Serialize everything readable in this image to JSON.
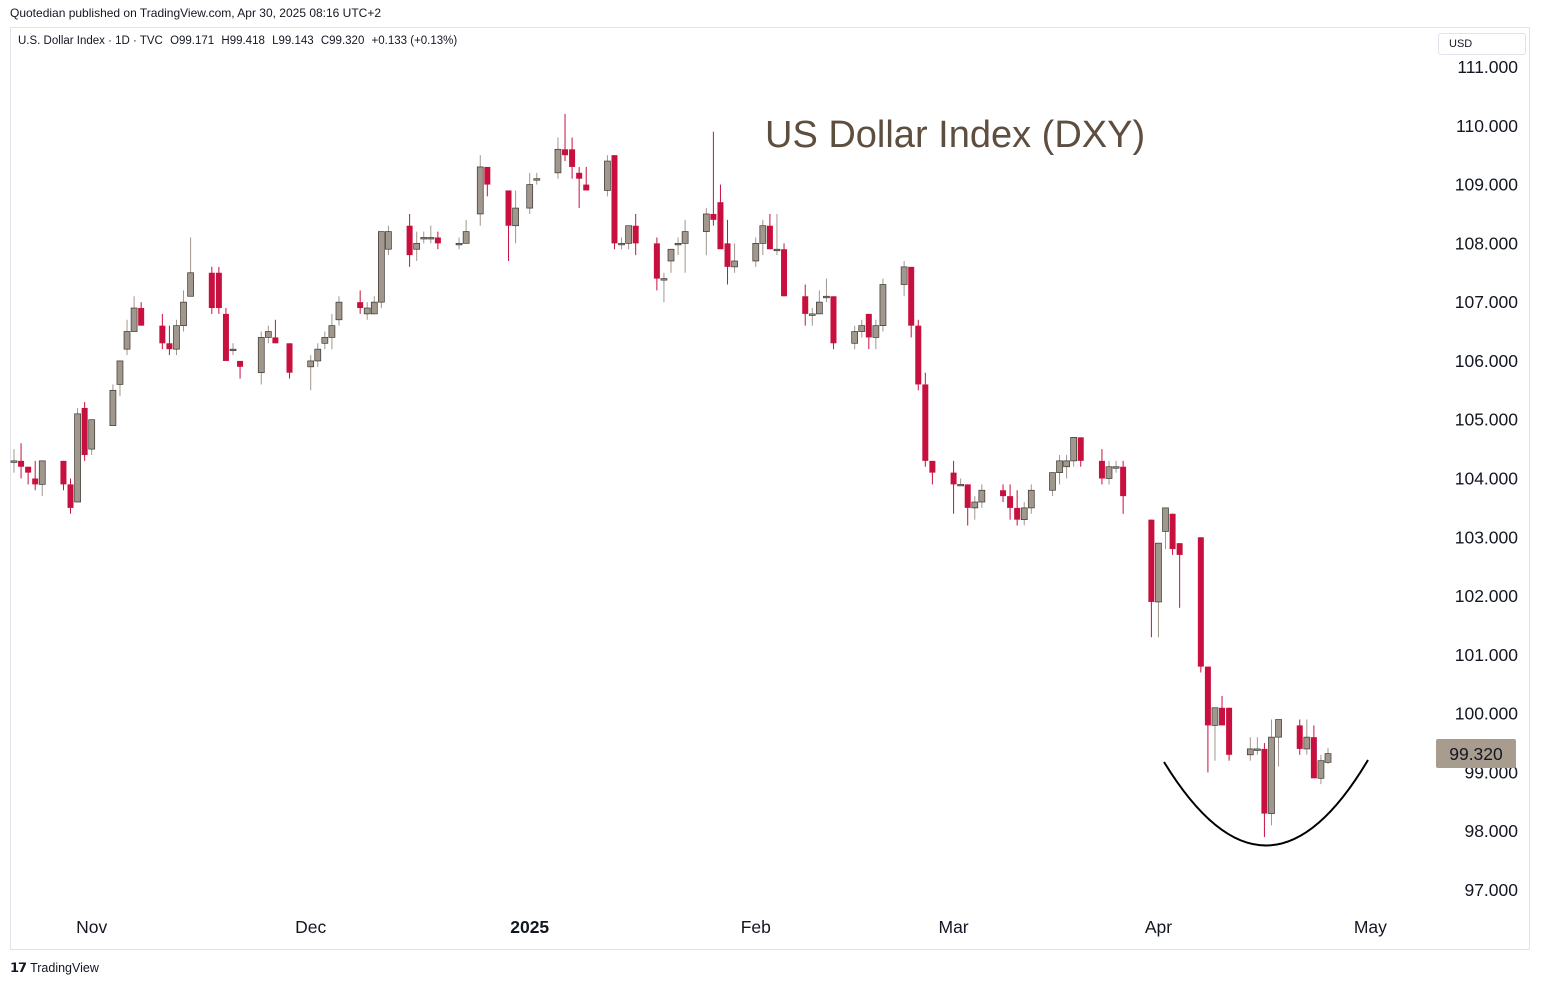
{
  "header": {
    "published": "Quotedian published on TradingView.com, Apr 30, 2025 08:16 UTC+2",
    "symbol": "U.S. Dollar Index · 1D · TVC",
    "open": "O99.171",
    "high": "H99.418",
    "low": "L99.143",
    "close": "C99.320",
    "change": "+0.133 (+0.13%)",
    "currency": "USD"
  },
  "footer": {
    "logo": "𝟭𝟳",
    "brand": "TradingView"
  },
  "colors": {
    "up": "#a0978d",
    "down": "#c8103f",
    "last_price_tag": "#a89c8f",
    "title": "#5d4e40"
  },
  "chart_data": {
    "type": "candlestick",
    "title": "US Dollar Index (DXY)",
    "last_price": "99.320",
    "y_ticks": [
      "111.000",
      "110.000",
      "109.000",
      "108.000",
      "107.000",
      "106.000",
      "105.000",
      "104.000",
      "103.000",
      "102.000",
      "101.000",
      "100.000",
      "99.000",
      "98.000",
      "97.000"
    ],
    "ylim": [
      96.9,
      111.4
    ],
    "x_ticks": [
      {
        "label": "Nov",
        "date": "2024-11-01"
      },
      {
        "label": "Dec",
        "date": "2024-12-02"
      },
      {
        "label": "2025",
        "date": "2025-01-02"
      },
      {
        "label": "Feb",
        "date": "2025-02-03"
      },
      {
        "label": "Mar",
        "date": "2025-03-03"
      },
      {
        "label": "Apr",
        "date": "2025-04-01"
      },
      {
        "label": "May",
        "date": "2025-05-01"
      }
    ],
    "annotation": "rounded-bottom arc under April lows",
    "ohlc": [
      [
        "2024-10-21",
        104.3,
        104.5,
        104.1,
        104.3
      ],
      [
        "2024-10-22",
        104.3,
        104.6,
        104.0,
        104.2
      ],
      [
        "2024-10-23",
        104.2,
        104.2,
        103.9,
        104.1
      ],
      [
        "2024-10-24",
        104.0,
        104.3,
        103.8,
        103.9
      ],
      [
        "2024-10-25",
        103.9,
        104.3,
        103.7,
        104.3
      ],
      [
        "2024-10-28",
        104.3,
        104.3,
        103.8,
        103.9
      ],
      [
        "2024-10-29",
        103.9,
        104.0,
        103.4,
        103.5
      ],
      [
        "2024-10-30",
        103.6,
        105.2,
        103.6,
        105.1
      ],
      [
        "2024-10-31",
        105.2,
        105.3,
        104.3,
        104.4
      ],
      [
        "2024-11-01",
        104.5,
        105.0,
        104.4,
        105.0
      ],
      [
        "2024-11-04",
        104.9,
        105.6,
        104.9,
        105.5
      ],
      [
        "2024-11-05",
        105.6,
        106.0,
        105.4,
        106.0
      ],
      [
        "2024-11-06",
        106.2,
        106.7,
        106.1,
        106.5
      ],
      [
        "2024-11-07",
        106.5,
        107.1,
        106.5,
        106.9
      ],
      [
        "2024-11-08",
        106.9,
        107.0,
        106.6,
        106.6
      ],
      [
        "2024-11-11",
        106.6,
        106.8,
        106.2,
        106.3
      ],
      [
        "2024-11-12",
        106.3,
        106.6,
        106.1,
        106.2
      ],
      [
        "2024-11-13",
        106.2,
        106.7,
        106.1,
        106.6
      ],
      [
        "2024-11-14",
        106.6,
        107.2,
        106.5,
        107.0
      ],
      [
        "2024-11-15",
        107.1,
        108.1,
        107.1,
        107.5
      ],
      [
        "2024-11-18",
        107.5,
        107.6,
        106.8,
        106.9
      ],
      [
        "2024-11-19",
        107.5,
        107.6,
        106.8,
        106.9
      ],
      [
        "2024-11-20",
        106.8,
        106.9,
        106.0,
        106.0
      ],
      [
        "2024-11-21",
        106.2,
        106.3,
        106.1,
        106.2
      ],
      [
        "2024-11-22",
        106.0,
        106.0,
        105.7,
        105.9
      ],
      [
        "2024-11-25",
        105.8,
        106.5,
        105.6,
        106.4
      ],
      [
        "2024-11-26",
        106.4,
        106.6,
        106.3,
        106.5
      ],
      [
        "2024-11-27",
        106.4,
        106.7,
        106.3,
        106.3
      ],
      [
        "2024-11-29",
        106.3,
        106.3,
        105.7,
        105.8
      ],
      [
        "2024-12-02",
        105.9,
        106.1,
        105.5,
        106.0
      ],
      [
        "2024-12-03",
        106.0,
        106.3,
        105.9,
        106.2
      ],
      [
        "2024-12-04",
        106.3,
        106.5,
        106.2,
        106.4
      ],
      [
        "2024-12-05",
        106.4,
        106.8,
        106.2,
        106.6
      ],
      [
        "2024-12-06",
        106.7,
        107.1,
        106.6,
        107.0
      ],
      [
        "2024-12-09",
        107.0,
        107.2,
        106.8,
        106.9
      ],
      [
        "2024-12-10",
        106.8,
        107.0,
        106.7,
        106.9
      ],
      [
        "2024-12-11",
        106.8,
        107.1,
        106.8,
        107.0
      ],
      [
        "2024-12-12",
        107.0,
        108.2,
        106.9,
        108.2
      ],
      [
        "2024-12-13",
        107.9,
        108.3,
        107.8,
        108.2
      ],
      [
        "2024-12-16",
        108.3,
        108.5,
        107.6,
        107.8
      ],
      [
        "2024-12-17",
        107.9,
        108.2,
        107.7,
        108.0
      ],
      [
        "2024-12-18",
        108.1,
        108.2,
        108.0,
        108.1
      ],
      [
        "2024-12-19",
        108.1,
        108.3,
        108.0,
        108.1
      ],
      [
        "2024-12-20",
        108.1,
        108.2,
        107.9,
        108.0
      ],
      [
        "2024-12-23",
        108.0,
        108.1,
        107.9,
        108.0
      ],
      [
        "2024-12-24",
        108.0,
        108.4,
        108.0,
        108.2
      ],
      [
        "2024-12-26",
        108.5,
        109.5,
        108.3,
        109.3
      ],
      [
        "2024-12-27",
        109.3,
        109.3,
        108.8,
        109.0
      ],
      [
        "2024-12-30",
        108.9,
        108.9,
        107.7,
        108.3
      ],
      [
        "2024-12-31",
        108.3,
        108.9,
        108.0,
        108.6
      ],
      [
        "2025-01-02",
        108.6,
        109.2,
        108.5,
        109.0
      ],
      [
        "2025-01-03",
        109.1,
        109.2,
        109.0,
        109.1
      ],
      [
        "2025-01-06",
        109.2,
        109.8,
        109.1,
        109.6
      ],
      [
        "2025-01-07",
        109.6,
        110.2,
        109.4,
        109.5
      ],
      [
        "2025-01-08",
        109.6,
        109.8,
        109.1,
        109.3
      ],
      [
        "2025-01-09",
        109.2,
        109.3,
        108.6,
        109.1
      ],
      [
        "2025-01-10",
        109.0,
        109.3,
        108.9,
        108.9
      ],
      [
        "2025-01-13",
        108.9,
        109.5,
        108.8,
        109.4
      ],
      [
        "2025-01-14",
        109.5,
        109.5,
        107.9,
        108.0
      ],
      [
        "2025-01-15",
        108.0,
        108.1,
        107.9,
        108.0
      ],
      [
        "2025-01-16",
        108.0,
        108.3,
        107.9,
        108.3
      ],
      [
        "2025-01-17",
        108.3,
        108.5,
        107.8,
        108.0
      ],
      [
        "2025-01-20",
        108.0,
        108.1,
        107.2,
        107.4
      ],
      [
        "2025-01-21",
        107.4,
        107.5,
        107.0,
        107.4
      ],
      [
        "2025-01-22",
        107.7,
        107.9,
        107.5,
        107.9
      ],
      [
        "2025-01-23",
        108.0,
        108.1,
        107.8,
        108.0
      ],
      [
        "2025-01-24",
        108.0,
        108.4,
        107.5,
        108.2
      ],
      [
        "2025-01-27",
        108.2,
        108.6,
        107.8,
        108.5
      ],
      [
        "2025-01-28",
        108.5,
        109.9,
        108.3,
        108.4
      ],
      [
        "2025-01-29",
        108.7,
        109.0,
        107.9,
        107.9
      ],
      [
        "2025-01-30",
        108.0,
        108.4,
        107.3,
        107.6
      ],
      [
        "2025-01-31",
        107.6,
        108.0,
        107.5,
        107.7
      ],
      [
        "2025-02-03",
        107.7,
        108.1,
        107.6,
        108.0
      ],
      [
        "2025-02-04",
        108.0,
        108.4,
        107.8,
        108.3
      ],
      [
        "2025-02-05",
        108.3,
        108.5,
        107.9,
        107.9
      ],
      [
        "2025-02-06",
        107.9,
        108.5,
        107.8,
        107.9
      ],
      [
        "2025-02-07",
        107.9,
        108.0,
        107.1,
        107.1
      ],
      [
        "2025-02-10",
        107.1,
        107.3,
        106.6,
        106.8
      ],
      [
        "2025-02-11",
        106.8,
        106.9,
        106.6,
        106.8
      ],
      [
        "2025-02-12",
        106.8,
        107.2,
        106.8,
        107.0
      ],
      [
        "2025-02-13",
        107.1,
        107.4,
        107.0,
        107.1
      ],
      [
        "2025-02-14",
        107.1,
        107.1,
        106.2,
        106.3
      ],
      [
        "2025-02-17",
        106.3,
        106.6,
        106.2,
        106.5
      ],
      [
        "2025-02-18",
        106.5,
        106.7,
        106.4,
        106.6
      ],
      [
        "2025-02-19",
        106.8,
        106.8,
        106.2,
        106.4
      ],
      [
        "2025-02-20",
        106.4,
        106.7,
        106.2,
        106.6
      ],
      [
        "2025-02-21",
        106.6,
        107.4,
        106.5,
        107.3
      ],
      [
        "2025-02-24",
        107.3,
        107.7,
        107.1,
        107.6
      ],
      [
        "2025-02-25",
        107.6,
        107.6,
        106.4,
        106.6
      ],
      [
        "2025-02-26",
        106.6,
        106.7,
        105.5,
        105.6
      ],
      [
        "2025-02-27",
        105.6,
        105.8,
        104.2,
        104.3
      ],
      [
        "2025-02-28",
        104.3,
        104.3,
        103.9,
        104.1
      ],
      [
        "2025-03-03",
        104.1,
        104.3,
        103.4,
        103.9
      ],
      [
        "2025-03-04",
        103.9,
        104.0,
        103.9,
        103.9
      ],
      [
        "2025-03-05",
        103.9,
        103.9,
        103.2,
        103.5
      ],
      [
        "2025-03-06",
        103.5,
        103.7,
        103.3,
        103.6
      ],
      [
        "2025-03-07",
        103.6,
        103.9,
        103.5,
        103.8
      ],
      [
        "2025-03-10",
        103.8,
        103.9,
        103.6,
        103.7
      ],
      [
        "2025-03-11",
        103.7,
        103.9,
        103.3,
        103.5
      ],
      [
        "2025-03-12",
        103.5,
        103.8,
        103.2,
        103.3
      ],
      [
        "2025-03-13",
        103.3,
        103.6,
        103.2,
        103.5
      ],
      [
        "2025-03-14",
        103.5,
        103.9,
        103.4,
        103.8
      ],
      [
        "2025-03-17",
        103.8,
        104.1,
        103.7,
        104.1
      ],
      [
        "2025-03-18",
        104.1,
        104.4,
        103.9,
        104.3
      ],
      [
        "2025-03-19",
        104.2,
        104.4,
        104.0,
        104.3
      ],
      [
        "2025-03-20",
        104.3,
        104.7,
        104.2,
        104.7
      ],
      [
        "2025-03-21",
        104.7,
        104.7,
        104.2,
        104.3
      ],
      [
        "2025-03-24",
        104.3,
        104.5,
        103.9,
        104.0
      ],
      [
        "2025-03-25",
        104.0,
        104.3,
        103.9,
        104.2
      ],
      [
        "2025-03-26",
        104.2,
        104.3,
        104.1,
        104.2
      ],
      [
        "2025-03-27",
        104.2,
        104.3,
        103.4,
        103.7
      ],
      [
        "2025-03-31",
        103.3,
        103.3,
        101.3,
        101.9
      ],
      [
        "2025-04-01",
        101.9,
        102.9,
        101.3,
        102.9
      ],
      [
        "2025-04-02",
        103.1,
        103.5,
        102.8,
        103.5
      ],
      [
        "2025-04-03",
        103.4,
        103.4,
        102.7,
        102.8
      ],
      [
        "2025-04-04",
        102.9,
        102.9,
        101.8,
        102.7
      ],
      [
        "2025-04-07",
        103.0,
        103.0,
        100.7,
        100.8
      ],
      [
        "2025-04-08",
        100.8,
        100.8,
        99.0,
        99.8
      ],
      [
        "2025-04-09",
        99.8,
        100.1,
        99.2,
        100.1
      ],
      [
        "2025-04-10",
        100.1,
        100.3,
        99.8,
        99.8
      ],
      [
        "2025-04-11",
        100.1,
        100.1,
        99.2,
        99.3
      ],
      [
        "2025-04-14",
        99.3,
        99.6,
        99.2,
        99.4
      ],
      [
        "2025-04-15",
        99.4,
        99.6,
        99.3,
        99.4
      ],
      [
        "2025-04-16",
        99.4,
        99.5,
        97.9,
        98.3
      ],
      [
        "2025-04-17",
        98.3,
        99.9,
        98.1,
        99.6
      ],
      [
        "2025-04-18",
        99.6,
        99.8,
        99.1,
        99.9
      ],
      [
        "2025-04-21",
        99.8,
        99.9,
        99.3,
        99.4
      ],
      [
        "2025-04-22",
        99.4,
        99.9,
        99.3,
        99.6
      ],
      [
        "2025-04-23",
        99.6,
        99.8,
        98.9,
        98.9
      ],
      [
        "2025-04-24",
        98.9,
        99.3,
        98.8,
        99.2
      ],
      [
        "2025-04-25",
        99.171,
        99.418,
        99.143,
        99.32
      ]
    ]
  }
}
